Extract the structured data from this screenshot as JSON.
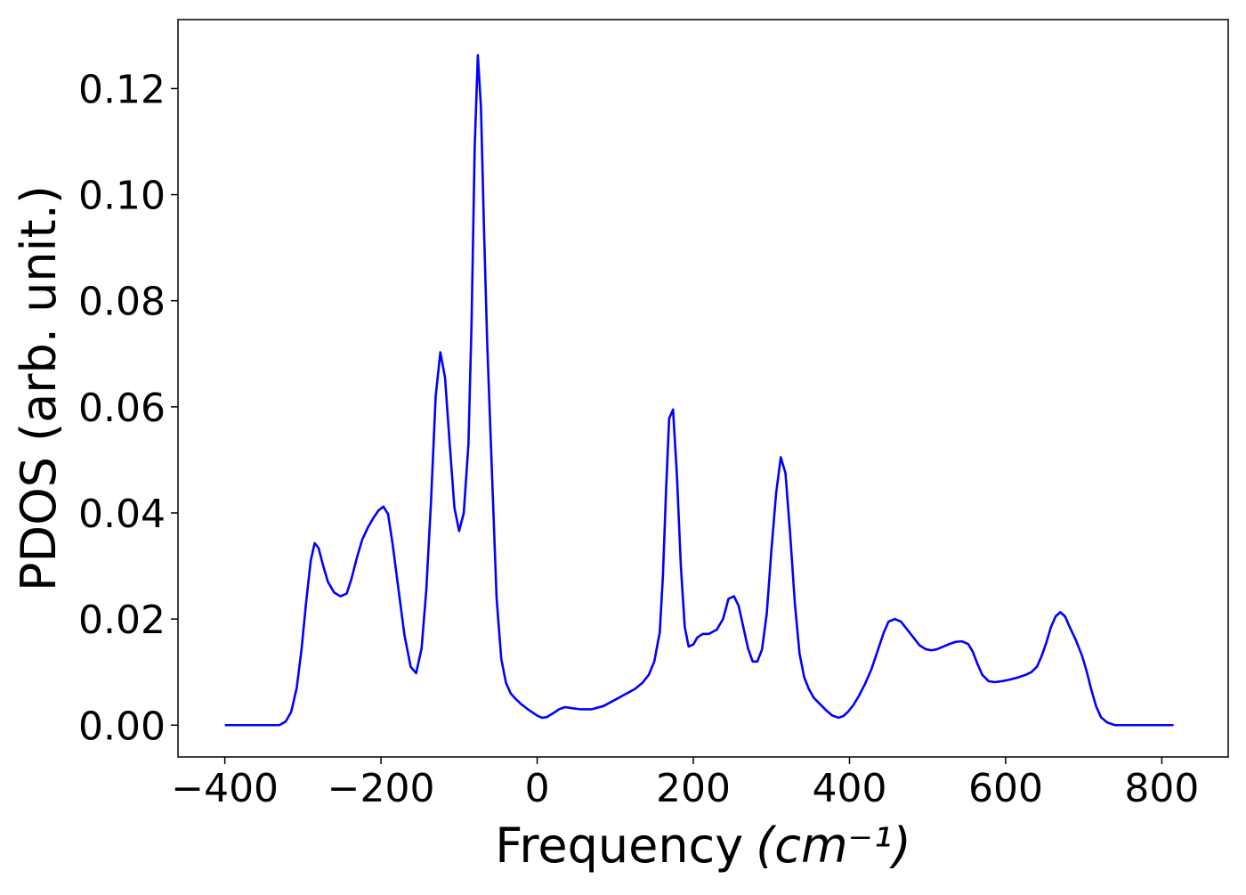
{
  "chart_data": {
    "type": "line",
    "xlabel": "Frequency",
    "xlabel_unit": "(cm⁻¹)",
    "ylabel": "PDOS (arb. unit.)",
    "xlim": [
      -460,
      885
    ],
    "ylim": [
      -0.006,
      0.133
    ],
    "x_ticks": [
      -400,
      -200,
      0,
      200,
      400,
      600,
      800
    ],
    "x_tick_labels": [
      "−400",
      "−200",
      "0",
      "200",
      "400",
      "600",
      "800"
    ],
    "y_ticks": [
      0.0,
      0.02,
      0.04,
      0.06,
      0.08,
      0.1,
      0.12
    ],
    "y_tick_labels": [
      "0.00",
      "0.02",
      "0.04",
      "0.06",
      "0.08",
      "0.10",
      "0.12"
    ],
    "grid": false,
    "series": [
      {
        "color": "#0000ff",
        "x": [
          -400,
          -330,
          -322,
          -315,
          -308,
          -302,
          -296,
          -290,
          -285,
          -280,
          -274,
          -268,
          -260,
          -252,
          -244,
          -238,
          -231,
          -224,
          -217,
          -210,
          -203,
          -197,
          -191,
          -185,
          -178,
          -170,
          -162,
          -155,
          -148,
          -142,
          -136,
          -130,
          -124,
          -118,
          -112,
          -106,
          -100,
          -94,
          -88,
          -84,
          -80,
          -76,
          -72,
          -68,
          -64,
          -58,
          -52,
          -46,
          -40,
          -34,
          -28,
          -20,
          -12,
          -4,
          0,
          6,
          12,
          20,
          28,
          36,
          44,
          55,
          70,
          85,
          100,
          115,
          125,
          135,
          143,
          150,
          157,
          161,
          165,
          169,
          174,
          179,
          184,
          189,
          194,
          200,
          205,
          212,
          220,
          230,
          238,
          245,
          252,
          258,
          264,
          270,
          276,
          282,
          288,
          294,
          300,
          306,
          312,
          318,
          324,
          330,
          336,
          342,
          348,
          354,
          362,
          370,
          378,
          386,
          392,
          398,
          405,
          412,
          420,
          428,
          436,
          444,
          450,
          458,
          466,
          474,
          482,
          490,
          498,
          505,
          512,
          520,
          528,
          536,
          544,
          552,
          558,
          564,
          570,
          578,
          586,
          596,
          606,
          616,
          626,
          633,
          640,
          646,
          652,
          658,
          664,
          670,
          676,
          682,
          690,
          698,
          704,
          710,
          716,
          722,
          730,
          740,
          760,
          780,
          815
        ],
        "y": [
          0.0,
          0.0,
          0.0007,
          0.0025,
          0.007,
          0.014,
          0.023,
          0.031,
          0.0343,
          0.0334,
          0.03,
          0.027,
          0.025,
          0.0243,
          0.0248,
          0.0275,
          0.0315,
          0.035,
          0.0372,
          0.039,
          0.0405,
          0.0412,
          0.0398,
          0.034,
          0.026,
          0.017,
          0.011,
          0.0098,
          0.0145,
          0.0255,
          0.042,
          0.062,
          0.0703,
          0.0655,
          0.053,
          0.041,
          0.0366,
          0.04,
          0.053,
          0.076,
          0.109,
          0.1263,
          0.1165,
          0.093,
          0.072,
          0.048,
          0.024,
          0.0125,
          0.008,
          0.006,
          0.005,
          0.0039,
          0.003,
          0.0022,
          0.0018,
          0.0014,
          0.0015,
          0.0022,
          0.003,
          0.0034,
          0.0032,
          0.003,
          0.003,
          0.0036,
          0.0048,
          0.006,
          0.0068,
          0.008,
          0.0095,
          0.012,
          0.0175,
          0.028,
          0.044,
          0.0578,
          0.0595,
          0.047,
          0.03,
          0.0185,
          0.0148,
          0.0152,
          0.0165,
          0.0172,
          0.0172,
          0.018,
          0.02,
          0.0238,
          0.0243,
          0.0225,
          0.0185,
          0.0145,
          0.012,
          0.012,
          0.0143,
          0.021,
          0.033,
          0.0437,
          0.0505,
          0.0475,
          0.036,
          0.023,
          0.0135,
          0.009,
          0.0068,
          0.0052,
          0.004,
          0.0028,
          0.0018,
          0.0014,
          0.0017,
          0.0025,
          0.0038,
          0.0055,
          0.0078,
          0.0105,
          0.014,
          0.0175,
          0.0195,
          0.02,
          0.0195,
          0.018,
          0.0165,
          0.015,
          0.0143,
          0.0141,
          0.0143,
          0.0148,
          0.0153,
          0.0157,
          0.0158,
          0.0153,
          0.0138,
          0.0115,
          0.0095,
          0.0083,
          0.0081,
          0.0083,
          0.0086,
          0.009,
          0.0095,
          0.01,
          0.011,
          0.013,
          0.0155,
          0.0185,
          0.0205,
          0.0213,
          0.0205,
          0.0185,
          0.016,
          0.013,
          0.01,
          0.0065,
          0.0035,
          0.0015,
          0.0005,
          0.0,
          0.0,
          0.0,
          0.0
        ]
      }
    ]
  }
}
